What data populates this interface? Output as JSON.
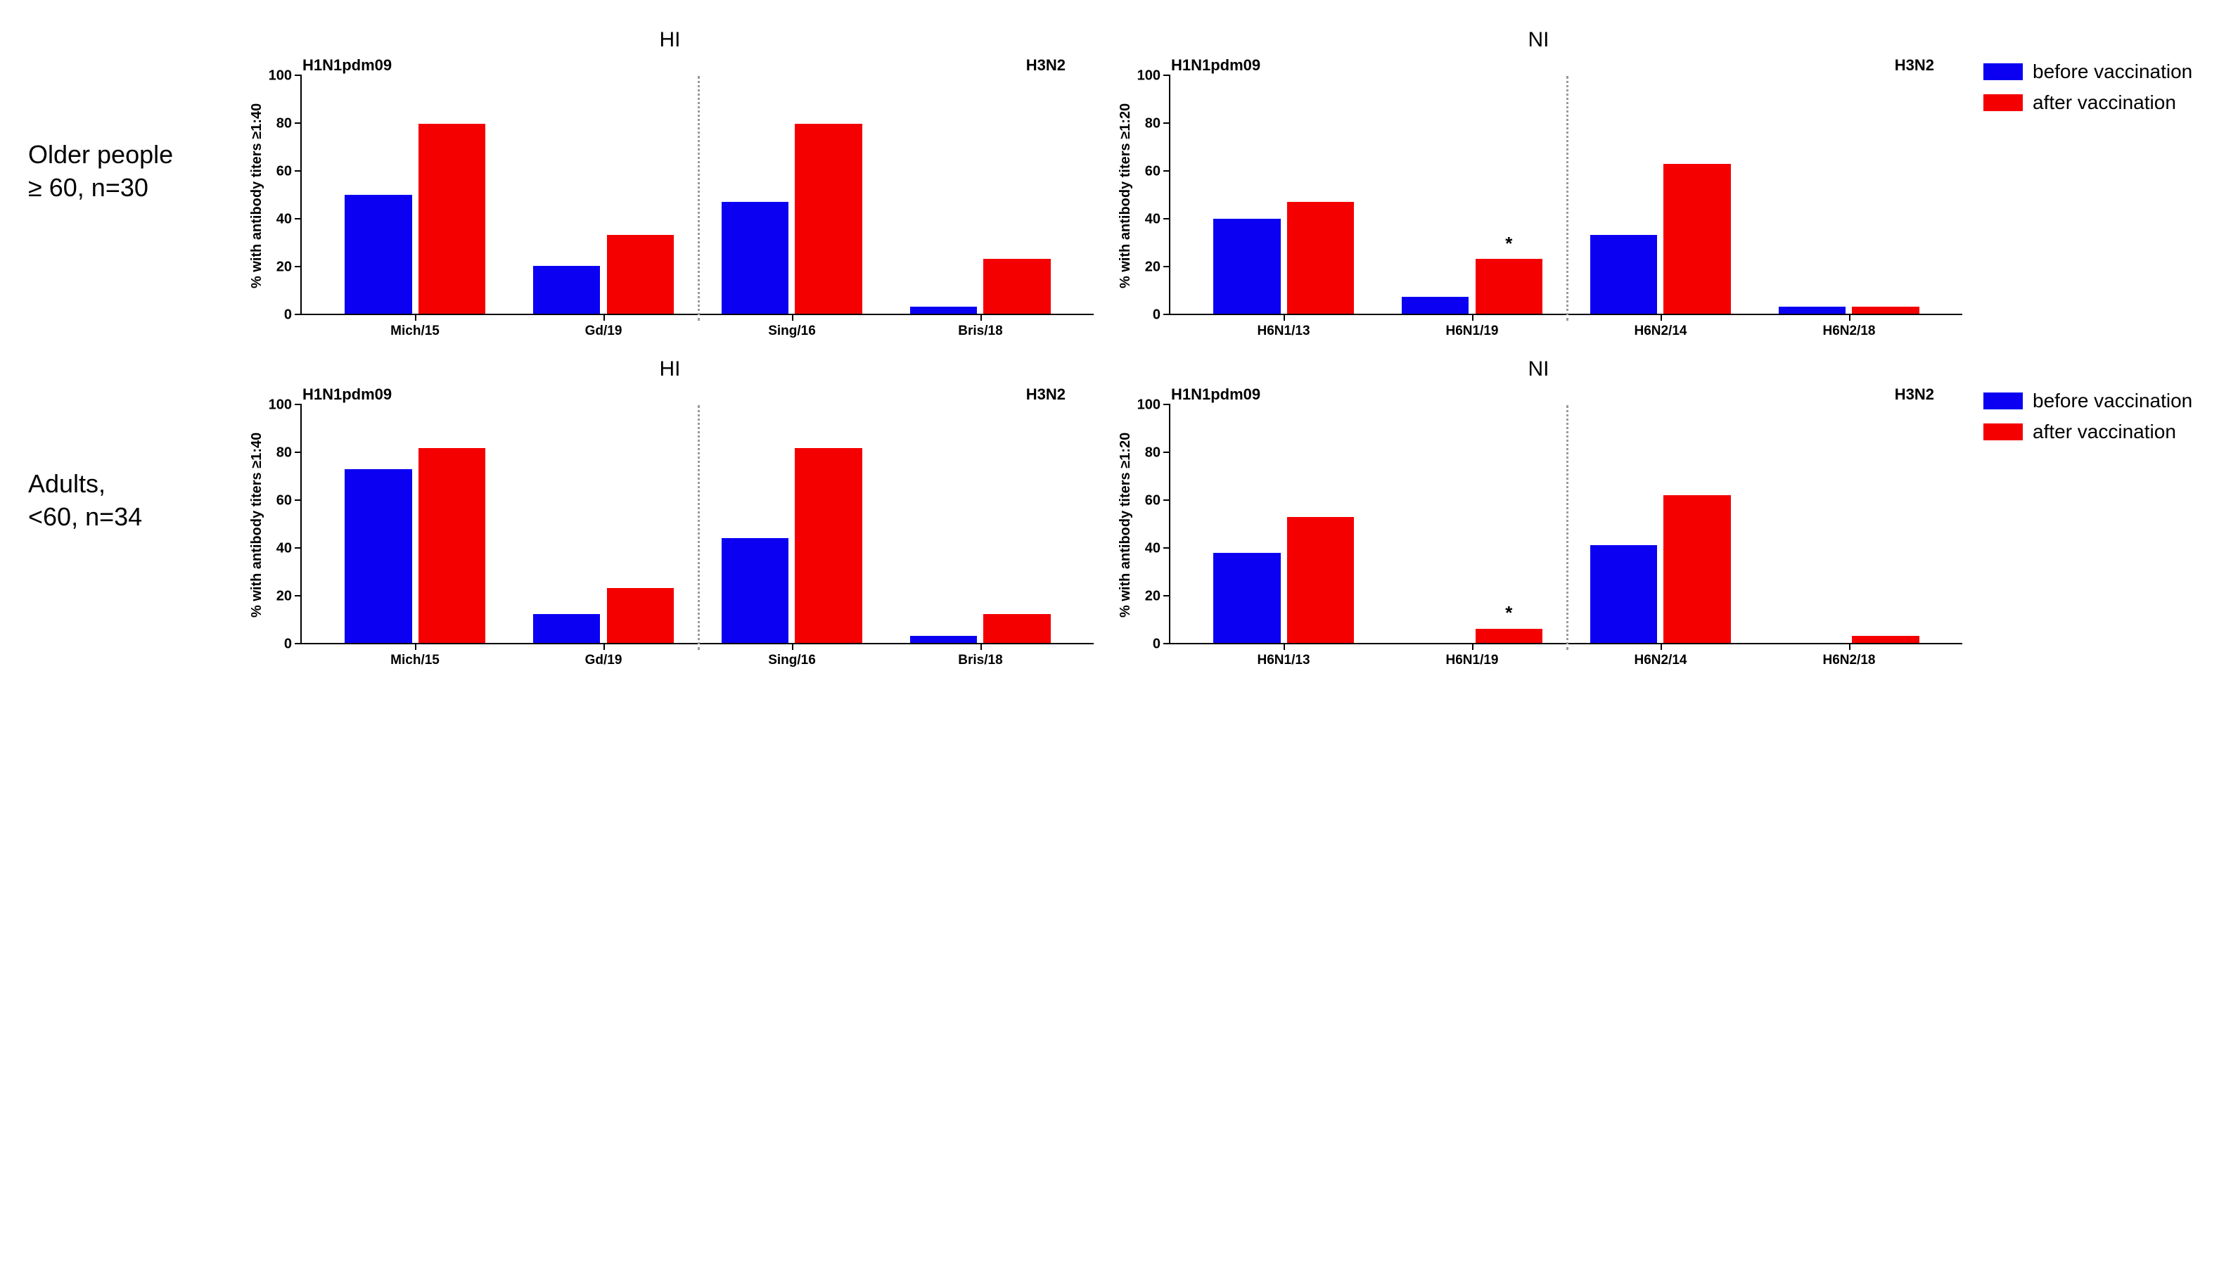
{
  "colors": {
    "before": "#0b00f2",
    "after": "#f40000",
    "axis": "#000000",
    "divider": "#9a9a9a",
    "bg": "#ffffff",
    "text": "#000000"
  },
  "bar_width_pct": 8.5,
  "bar_gap_pct": 0.8,
  "group_gap_pct": 6,
  "legend": {
    "before": "before vaccination",
    "after": "after vaccination"
  },
  "rows": [
    {
      "label_lines": [
        "Older people",
        "≥ 60, n=30"
      ],
      "panels": [
        {
          "title": "HI",
          "y_label": "% with antibody titers ≥1:40",
          "ylim": [
            0,
            100
          ],
          "ytick_step": 20,
          "subgroups": [
            "H1N1pdm09",
            "H3N2"
          ],
          "divider_after_index": 1,
          "categories": [
            "Mich/15",
            "Gd/19",
            "Sing/16",
            "Bris/18"
          ],
          "before": [
            50,
            20,
            47,
            3
          ],
          "after": [
            80,
            33,
            80,
            23
          ],
          "annotations": []
        },
        {
          "title": "NI",
          "y_label": "% with antibody titers ≥1:20",
          "ylim": [
            0,
            100
          ],
          "ytick_step": 20,
          "subgroups": [
            "H1N1pdm09",
            "H3N2"
          ],
          "divider_after_index": 1,
          "categories": [
            "H6N1/13",
            "H6N1/19",
            "H6N2/14",
            "H6N2/18"
          ],
          "before": [
            40,
            7,
            33,
            3
          ],
          "after": [
            47,
            23,
            63,
            3
          ],
          "annotations": [
            {
              "cat_index": 1,
              "series": "after",
              "text": "*"
            }
          ]
        }
      ]
    },
    {
      "label_lines": [
        "Adults,",
        "<60, n=34"
      ],
      "panels": [
        {
          "title": "HI",
          "y_label": "% with antibody titers ≥1:40",
          "ylim": [
            0,
            100
          ],
          "ytick_step": 20,
          "subgroups": [
            "H1N1pdm09",
            "H3N2"
          ],
          "divider_after_index": 1,
          "categories": [
            "Mich/15",
            "Gd/19",
            "Sing/16",
            "Bris/18"
          ],
          "before": [
            73,
            12,
            44,
            3
          ],
          "after": [
            82,
            23,
            82,
            12
          ],
          "annotations": []
        },
        {
          "title": "NI",
          "y_label": "% with antibody titers ≥1:20",
          "ylim": [
            0,
            100
          ],
          "ytick_step": 20,
          "subgroups": [
            "H1N1pdm09",
            "H3N2"
          ],
          "divider_after_index": 1,
          "categories": [
            "H6N1/13",
            "H6N1/19",
            "H6N2/14",
            "H6N2/18"
          ],
          "before": [
            38,
            0,
            41,
            0
          ],
          "after": [
            53,
            6,
            62,
            3
          ],
          "annotations": [
            {
              "cat_index": 1,
              "series": "after",
              "text": "*"
            }
          ]
        }
      ]
    }
  ]
}
